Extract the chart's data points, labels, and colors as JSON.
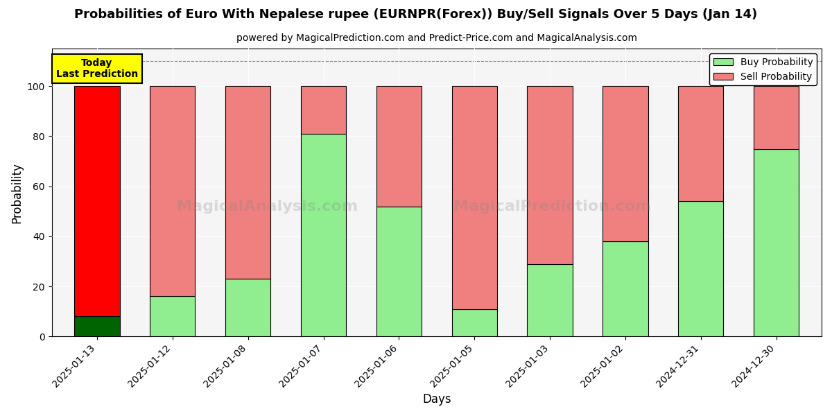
{
  "title": "Probabilities of Euro With Nepalese rupee (EURNPR(Forex)) Buy/Sell Signals Over 5 Days (Jan 14)",
  "subtitle": "powered by MagicalPrediction.com and Predict-Price.com and MagicalAnalysis.com",
  "xlabel": "Days",
  "ylabel": "Probability",
  "categories": [
    "2025-01-13",
    "2025-01-12",
    "2025-01-08",
    "2025-01-07",
    "2025-01-06",
    "2025-01-05",
    "2025-01-03",
    "2025-01-02",
    "2024-12-31",
    "2024-12-30"
  ],
  "buy_values": [
    8,
    16,
    23,
    81,
    52,
    11,
    29,
    38,
    54,
    75
  ],
  "sell_values": [
    92,
    84,
    77,
    19,
    48,
    89,
    71,
    62,
    46,
    25
  ],
  "buy_colors": [
    "#006400",
    "#90EE90",
    "#90EE90",
    "#90EE90",
    "#90EE90",
    "#90EE90",
    "#90EE90",
    "#90EE90",
    "#90EE90",
    "#90EE90"
  ],
  "sell_colors": [
    "#FF0000",
    "#F08080",
    "#F08080",
    "#F08080",
    "#F08080",
    "#F08080",
    "#F08080",
    "#F08080",
    "#F08080",
    "#F08080"
  ],
  "today_label": "Today\nLast Prediction",
  "today_bg": "#FFFF00",
  "watermark_texts": [
    "MagicalAnalysis.com",
    "MagicalPrediction.com"
  ],
  "legend_buy_color": "#90EE90",
  "legend_sell_color": "#F08080",
  "ylim": [
    0,
    115
  ],
  "yticks": [
    0,
    20,
    40,
    60,
    80,
    100
  ],
  "bar_width": 0.6,
  "figsize": [
    12,
    6
  ],
  "dpi": 100
}
